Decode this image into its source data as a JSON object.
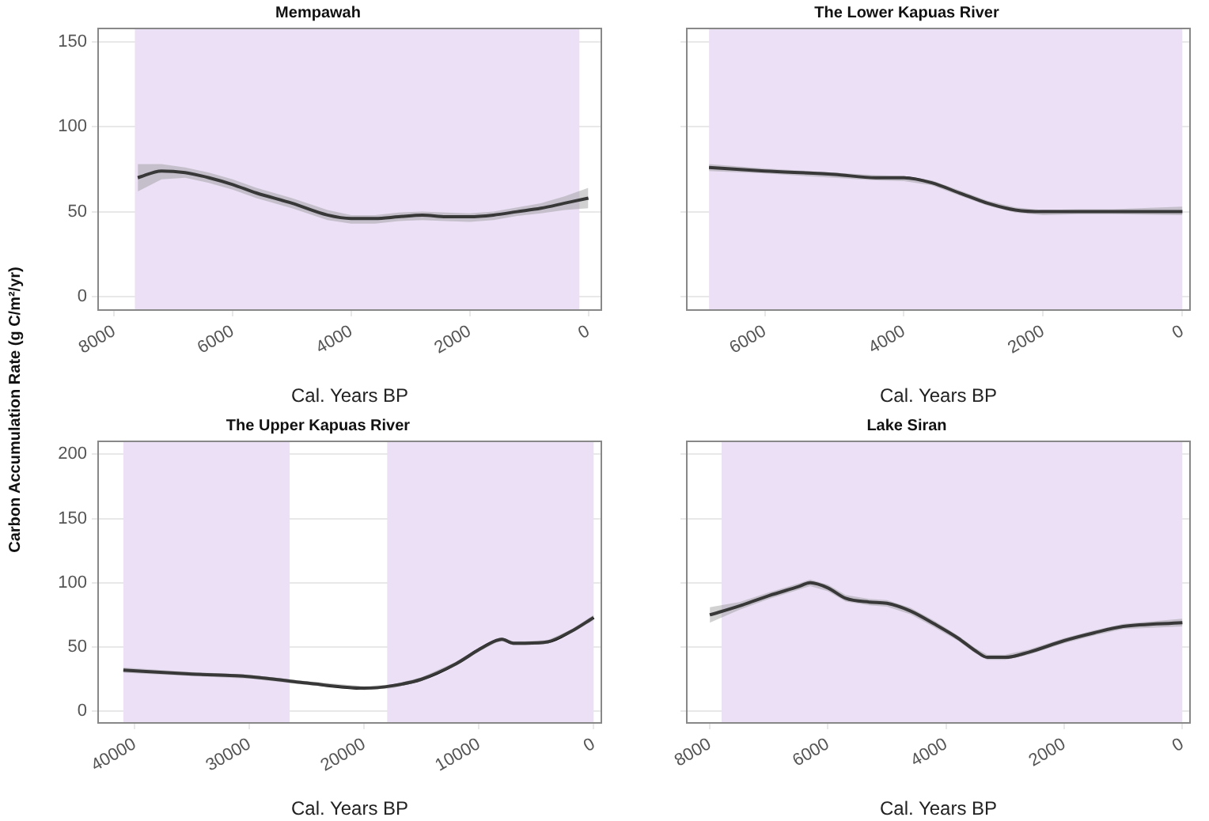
{
  "chart_data": [
    {
      "type": "line",
      "title": "Mempawah",
      "xlabel": "Cal. Years BP",
      "ylabel": "Carbon Accumulation Rate (g C/m²/yr)",
      "xlim": [
        8270,
        -220
      ],
      "xticks": [
        8000,
        6000,
        4000,
        2000,
        0
      ],
      "ylim": [
        -8,
        158
      ],
      "yticks": [
        0,
        50,
        100,
        150
      ],
      "grid": "y",
      "x": [
        7600,
        7200,
        6800,
        6400,
        6000,
        5600,
        5000,
        4400,
        4000,
        3600,
        3200,
        2800,
        2400,
        2000,
        1600,
        1200,
        800,
        400,
        0
      ],
      "series": [
        {
          "color": "#000000",
          "values": [
            70,
            74,
            73,
            70,
            66,
            61,
            55,
            48,
            46,
            46,
            47,
            48,
            47,
            47,
            48,
            50,
            52,
            55,
            58
          ],
          "lower": [
            62,
            69,
            70,
            67,
            63,
            58,
            52,
            45,
            43,
            43,
            44.5,
            45,
            44.5,
            44,
            45,
            47.5,
            49,
            51,
            52
          ],
          "upper": [
            78,
            78,
            76,
            73,
            69,
            64,
            58,
            51,
            48,
            48,
            49.5,
            50,
            49.5,
            49,
            50,
            52.5,
            55,
            59,
            64
          ]
        }
      ],
      "bands": [
        {
          "axis": "x",
          "from": 7650,
          "to": 150,
          "color": "#ebe0f5"
        }
      ]
    },
    {
      "type": "line",
      "title": "The Lower Kapuas River",
      "xlabel": "Cal. Years BP",
      "xlim": [
        7120,
        -110
      ],
      "xticks": [
        6000,
        4000,
        2000,
        0
      ],
      "ylim": [
        -8,
        158
      ],
      "yticks": [
        0,
        50,
        100,
        150
      ],
      "grid": "y",
      "tick_labels": "x",
      "x": [
        6800,
        6000,
        5000,
        4400,
        4000,
        3600,
        3200,
        2800,
        2400,
        2000,
        1500,
        1000,
        0
      ],
      "series": [
        {
          "color": "#000000",
          "values": [
            76,
            74,
            72,
            70,
            70,
            67,
            61,
            55,
            51,
            50,
            50,
            50,
            50
          ],
          "lower": [
            74,
            72.5,
            70,
            68.5,
            68,
            65.5,
            59.5,
            53.5,
            49.5,
            48,
            48.5,
            48.5,
            48
          ],
          "upper": [
            78,
            75.5,
            73,
            71.5,
            71,
            68.5,
            62.5,
            56.5,
            52.5,
            51,
            51.5,
            51.5,
            53
          ]
        }
      ],
      "bands": [
        {
          "axis": "x",
          "from": 6800,
          "to": 0,
          "color": "#ebe0f5"
        }
      ]
    },
    {
      "type": "line",
      "title": "The Upper Kapuas River",
      "xlabel": "Cal. Years BP",
      "xlim": [
        43200,
        -670
      ],
      "xticks": [
        40000,
        30000,
        20000,
        10000,
        0
      ],
      "ylim": [
        -9,
        210
      ],
      "yticks": [
        0,
        50,
        100,
        150,
        200
      ],
      "grid": "y",
      "x": [
        41000,
        35000,
        30000,
        25000,
        20000,
        17500,
        15000,
        12000,
        10000,
        8500,
        8000,
        7000,
        6000,
        4000,
        2000,
        0
      ],
      "series": [
        {
          "color": "#000000",
          "values": [
            32,
            29,
            27,
            22,
            18,
            20,
            25,
            37,
            48,
            55,
            56,
            53,
            53,
            54,
            62,
            73
          ],
          "lower": [
            30,
            27.5,
            25.5,
            20.5,
            16.5,
            18,
            23.5,
            35.5,
            46.5,
            53.5,
            54.5,
            51.5,
            51.5,
            52.5,
            60.5,
            71
          ],
          "upper": [
            34,
            30.5,
            28.5,
            23.5,
            19.5,
            21,
            26.5,
            38.5,
            49.5,
            56.5,
            57.5,
            54.5,
            54.5,
            55.5,
            63.5,
            75
          ]
        }
      ],
      "bands": [
        {
          "axis": "x",
          "from": 41000,
          "to": 26500,
          "color": "#ebe0f5"
        },
        {
          "axis": "x",
          "from": 18000,
          "to": 0,
          "color": "#ebe0f5"
        }
      ]
    },
    {
      "type": "line",
      "title": "Lake Siran",
      "xlabel": "Cal. Years BP",
      "xlim": [
        8390,
        -130
      ],
      "xticks": [
        8000,
        6000,
        4000,
        2000,
        0
      ],
      "ylim": [
        -9,
        210
      ],
      "yticks": [
        0,
        50,
        100,
        150,
        200
      ],
      "grid": "y",
      "tick_labels": "x",
      "x": [
        8000,
        7500,
        7000,
        6500,
        6300,
        6000,
        5700,
        5300,
        5000,
        4600,
        4200,
        3800,
        3500,
        3300,
        3000,
        2600,
        2000,
        1500,
        1000,
        0
      ],
      "series": [
        {
          "color": "#000000",
          "values": [
            75,
            82,
            90,
            97,
            100,
            96,
            88,
            85,
            84,
            78,
            68,
            57,
            47,
            42,
            42,
            46,
            55,
            61,
            66,
            69
          ],
          "lower": [
            69,
            79,
            87.5,
            94.5,
            97.5,
            93.5,
            85.5,
            82.5,
            81.5,
            75.5,
            65.5,
            55,
            45,
            40,
            40,
            44,
            53,
            59,
            64,
            66
          ],
          "upper": [
            81,
            85,
            92.5,
            99.5,
            102.5,
            98.5,
            90.5,
            87.5,
            86.5,
            80.5,
            70.5,
            59,
            49,
            44,
            44,
            48,
            57,
            63,
            68,
            72
          ]
        }
      ],
      "bands": [
        {
          "axis": "x",
          "from": 7800,
          "to": 0,
          "color": "#ebe0f5"
        }
      ]
    }
  ]
}
